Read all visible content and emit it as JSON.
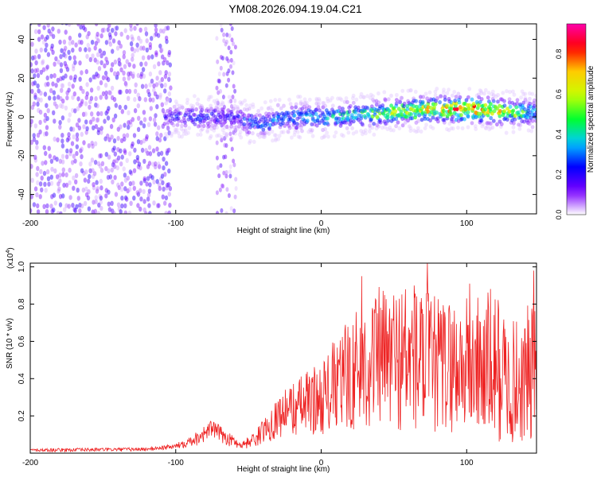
{
  "title": "YM08.2026.094.19.04.C21",
  "colors": {
    "snr_line": "#ee2222",
    "colormap": [
      "#ffffff",
      "#7a00ff",
      "#0000ff",
      "#00c8ff",
      "#00ff30",
      "#c8ff00",
      "#ffcc00",
      "#ff0000",
      "#ff00aa"
    ]
  },
  "chart_data": [
    {
      "type": "heatmap",
      "name": "spectrogram",
      "xlabel": "Height of straight line (km)",
      "ylabel": "Frequency (Hz)",
      "xlim": [
        -200,
        148
      ],
      "ylim": [
        -50,
        48
      ],
      "xticks": [
        -200,
        -100,
        0,
        100
      ],
      "xtick_labels": [
        "-200",
        "-100",
        "0",
        "100"
      ],
      "yticks": [
        -40,
        -20,
        0,
        20,
        40
      ],
      "ytick_labels": [
        "-40",
        "-20",
        "0",
        "20",
        "40"
      ],
      "colorbar": {
        "label": "Normalized spectral amplitude",
        "range": [
          0,
          0.95
        ],
        "ticks": [
          0.0,
          0.2,
          0.4,
          0.6,
          0.8
        ],
        "tick_labels": [
          "0.0",
          "0.2",
          "0.4",
          "0.6",
          "0.8"
        ]
      },
      "description_regions": [
        {
          "x_from": -200,
          "x_to": -105,
          "freq_from": -50,
          "freq_to": 48,
          "amplitude": 0.12,
          "pattern": "broadband noise"
        },
        {
          "x_from": -72,
          "x_to": -58,
          "freq_from": -50,
          "freq_to": 48,
          "amplitude": 0.08,
          "pattern": "vertical stripe"
        },
        {
          "x_from": -105,
          "x_to": 148,
          "freq_center": 0,
          "freq_halfwidth": 9,
          "amplitude_peak": 0.92,
          "pattern": "narrow band"
        }
      ],
      "band_center": {
        "x": [
          -105,
          -80,
          -60,
          -50,
          -40,
          -30,
          -20,
          0,
          20,
          40,
          60,
          80,
          100,
          120,
          148
        ],
        "freq": [
          0,
          0,
          0,
          -3,
          -3,
          -1,
          0,
          0,
          1,
          2,
          3,
          4,
          4,
          3,
          2
        ],
        "amplitude": [
          0.22,
          0.25,
          0.2,
          0.3,
          0.3,
          0.32,
          0.34,
          0.38,
          0.45,
          0.55,
          0.62,
          0.72,
          0.82,
          0.7,
          0.4
        ]
      }
    },
    {
      "type": "line",
      "name": "snr",
      "xlabel": "Height of straight line (km)",
      "ylabel": "SNR (10 * v/v)",
      "multiplier_label": "(x10",
      "multiplier_exp": "4",
      "multiplier_close": ")",
      "xlim": [
        -200,
        148
      ],
      "ylim": [
        0,
        1.02
      ],
      "xticks": [
        -200,
        -100,
        0,
        100
      ],
      "xtick_labels": [
        "-200",
        "-100",
        "0",
        "100"
      ],
      "yticks": [
        0.2,
        0.4,
        0.6,
        0.8,
        1.0
      ],
      "ytick_labels": [
        "0.2",
        "0.4",
        "0.6",
        "0.8",
        "1.0"
      ],
      "envelope": {
        "x": [
          -200,
          -120,
          -100,
          -85,
          -75,
          -65,
          -55,
          -45,
          -30,
          -15,
          0,
          20,
          40,
          60,
          80,
          100,
          120,
          130,
          148
        ],
        "upper": [
          0.025,
          0.03,
          0.05,
          0.12,
          0.18,
          0.12,
          0.06,
          0.12,
          0.3,
          0.42,
          0.5,
          0.75,
          0.9,
          0.95,
          0.85,
          0.85,
          0.9,
          0.7,
          0.85
        ],
        "lower": [
          0.005,
          0.01,
          0.02,
          0.04,
          0.08,
          0.04,
          0.02,
          0.03,
          0.08,
          0.1,
          0.1,
          0.12,
          0.15,
          0.1,
          0.1,
          0.12,
          0.05,
          0.05,
          0.04
        ]
      },
      "peaks": [
        {
          "x": 73,
          "y": 1.02
        },
        {
          "x": 28,
          "y": 0.95
        },
        {
          "x": 146,
          "y": 0.98
        },
        {
          "x": 64,
          "y": 0.9
        },
        {
          "x": 102,
          "y": 0.91
        }
      ]
    }
  ]
}
